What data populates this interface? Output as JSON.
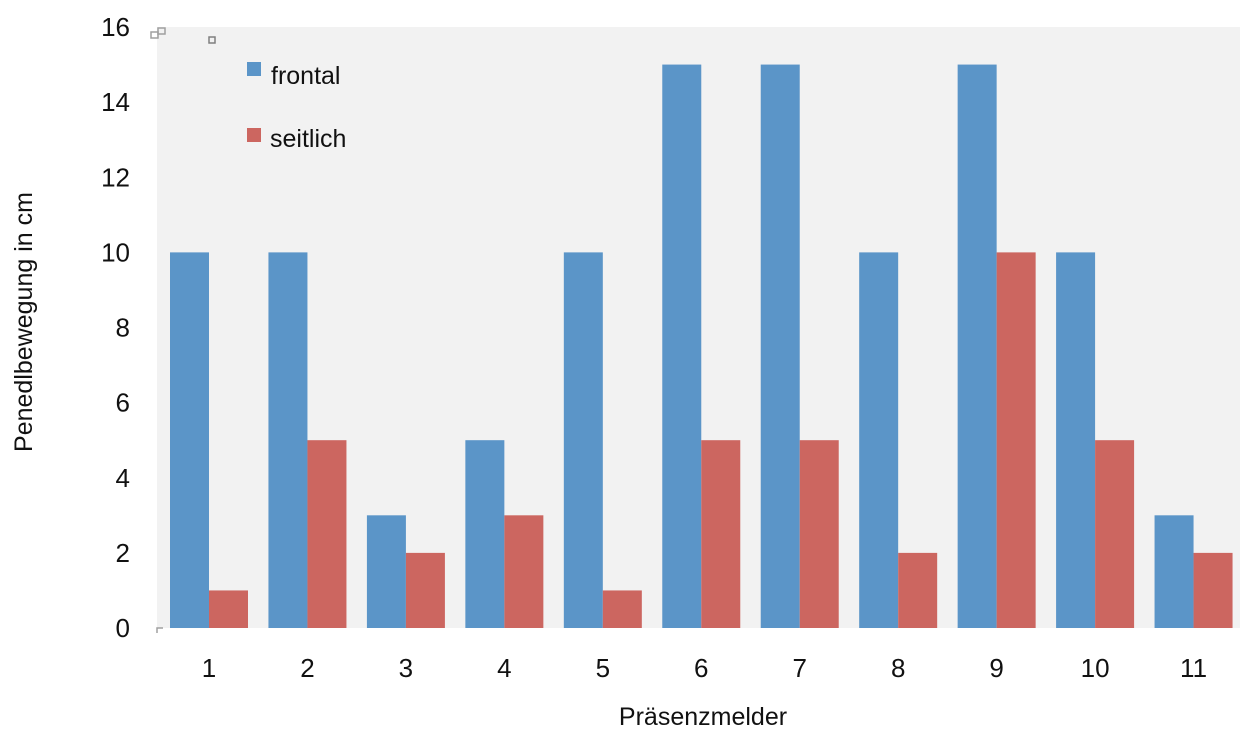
{
  "chart_data": {
    "type": "bar",
    "title": "",
    "xlabel": "Präsenzmelder",
    "ylabel": "Penedlbewegung in cm",
    "categories": [
      "1",
      "2",
      "3",
      "4",
      "5",
      "6",
      "7",
      "8",
      "9",
      "10",
      "11"
    ],
    "series": [
      {
        "name": "frontal",
        "color": "#5b95c8",
        "values": [
          10,
          10,
          3,
          5,
          10,
          15,
          15,
          10,
          15,
          10,
          3
        ]
      },
      {
        "name": "seitlich",
        "color": "#cc6660",
        "values": [
          1,
          5,
          2,
          3,
          1,
          5,
          5,
          2,
          10,
          5,
          2
        ]
      }
    ],
    "ylim": [
      0,
      16
    ],
    "yticks": [
      0,
      2,
      4,
      6,
      8,
      10,
      12,
      14,
      16
    ],
    "grid": false,
    "legend_position": "top-left",
    "plot_background": "#f2f2f2"
  }
}
